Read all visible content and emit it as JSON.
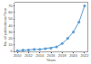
{
  "chart_data": {
    "type": "line",
    "x": [
      2010,
      2011,
      2012,
      2013,
      2014,
      2015,
      2016,
      2017,
      2018,
      2019,
      2020,
      2021,
      2022
    ],
    "values": [
      1,
      2,
      2,
      3,
      3,
      4,
      5,
      7,
      12,
      20,
      30,
      45,
      70
    ],
    "color": "#5b9bd5",
    "marker": "circle",
    "xlabel": "Years",
    "ylabel": "No. of publications/Year",
    "xlim": [
      2009.5,
      2022.5
    ],
    "ylim": [
      0,
      75
    ],
    "xticks": [
      2010,
      2012,
      2014,
      2016,
      2018,
      2020,
      2022
    ],
    "yticks": [
      0,
      10,
      20,
      30,
      40,
      50,
      60,
      70
    ],
    "grid": false
  }
}
